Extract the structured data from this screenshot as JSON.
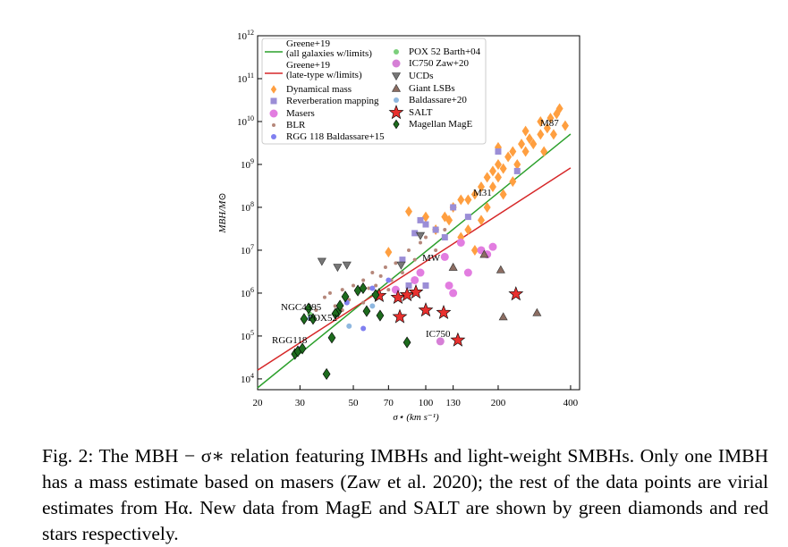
{
  "chart_data": {
    "type": "scatter",
    "log_x": true,
    "log_y": true,
    "legend": "upper left",
    "xlabel": "σ⋆ (km s⁻¹)",
    "ylabel": "MBH/M⊙",
    "xlim": [
      20,
      436
    ],
    "ylim": [
      5600,
      1000000000000
    ],
    "xticks": [
      20,
      30,
      50,
      70,
      100,
      130,
      200,
      400
    ],
    "yticks": [
      {
        "value": 10000,
        "label": "10^4"
      },
      {
        "value": 100000,
        "label": "10^5"
      },
      {
        "value": 1000000,
        "label": "10^6"
      },
      {
        "value": 10000000,
        "label": "10^7"
      },
      {
        "value": 100000000,
        "label": "10^8"
      },
      {
        "value": 1000000000,
        "label": "10^9"
      },
      {
        "value": 10000000000,
        "label": "10^10"
      },
      {
        "value": 100000000000,
        "label": "10^11"
      },
      {
        "value": 1000000000000,
        "label": "10^12"
      }
    ],
    "annotations": [
      "M87",
      "M31",
      "MW",
      "NGC4395",
      "POX52",
      "RGG118",
      "IC750"
    ],
    "series": [
      {
        "name": "Greene+19\n(all galaxies w/limits)",
        "marker": "line",
        "color": "#2ca02c",
        "x": [
          20,
          400
        ],
        "values": [
          6200,
          5100000000
        ]
      },
      {
        "name": "Greene+19\n(late-type w/limits)",
        "marker": "line",
        "color": "#d62728",
        "x": [
          20,
          400
        ],
        "values": [
          16000,
          830000000
        ]
      },
      {
        "name": "Dynamical mass",
        "marker": "diamond",
        "color": "#ff9f40",
        "x": [
          70,
          85,
          100,
          110,
          120,
          130,
          140,
          150,
          150,
          160,
          170,
          180,
          180,
          190,
          200,
          200,
          210,
          220,
          230,
          240,
          250,
          260,
          280,
          300,
          310,
          320,
          340,
          350,
          360,
          380,
          300,
          270,
          230,
          190,
          160,
          140,
          125,
          170,
          210,
          330,
          260,
          200
        ],
        "values": [
          9000000,
          80000000,
          60000000,
          30000000,
          60000000,
          100000000,
          150000000,
          30000000,
          150000000,
          200000000,
          300000000,
          500000000,
          100000000,
          700000000,
          500000000,
          1000000000,
          800000000,
          1500000000,
          2000000000,
          1000000000,
          3000000000,
          2000000000,
          3000000000,
          5000000000,
          2000000000,
          7000000000,
          5000000000,
          15000000000,
          20000000000,
          8000000000,
          10000000000,
          4000000000,
          400000000,
          300000000,
          10000000,
          20000000,
          50000000,
          50000000,
          200000000,
          12000000000,
          6000000000,
          2500000000
        ]
      },
      {
        "name": "Reverberation mapping",
        "marker": "square",
        "color": "#9b8ed6",
        "x": [
          90,
          95,
          100,
          110,
          120,
          130,
          150,
          200,
          240,
          80,
          85,
          100
        ],
        "values": [
          25000000,
          50000000,
          40000000,
          30000000,
          20000000,
          100000000,
          60000000,
          2000000000,
          700000000,
          6000000,
          1500000,
          1500000
        ]
      },
      {
        "name": "Masers",
        "marker": "circle",
        "color": "#e27de0",
        "x": [
          75,
          90,
          120,
          125,
          130,
          150,
          170,
          180,
          140,
          190,
          95
        ],
        "values": [
          1200000,
          2000000,
          7000000,
          1500000,
          1000000,
          3000000,
          10000000,
          8000000,
          15000000,
          12000000,
          3000000
        ]
      },
      {
        "name": "BLR",
        "marker": "dot",
        "color": "#b5877a",
        "x": [
          35,
          38,
          40,
          42,
          45,
          48,
          50,
          52,
          55,
          58,
          60,
          62,
          65,
          68,
          70,
          72,
          75,
          80,
          85,
          90,
          95,
          100,
          110,
          120,
          45,
          55,
          65
        ],
        "values": [
          400000,
          800000,
          1000000,
          500000,
          1200000,
          700000,
          1500000,
          1000000,
          2000000,
          1300000,
          3000000,
          1500000,
          2500000,
          4000000,
          1200000,
          2000000,
          5000000,
          3000000,
          10000000,
          6000000,
          15000000,
          20000000,
          10000000,
          30000000,
          400000,
          600000,
          800000
        ]
      },
      {
        "name": "RGG 118 Baldassare+15",
        "marker": "circle-small",
        "color": "#8080f0",
        "x": [
          30,
          55,
          47,
          60,
          70
        ],
        "values": [
          50000,
          150000,
          600000,
          1300000,
          2000000
        ]
      },
      {
        "name": "POX 52 Barth+04",
        "marker": "circle-small",
        "color": "#7ccf7c",
        "x": [
          33
        ],
        "values": [
          320000
        ]
      },
      {
        "name": "IC750 Zaw+20",
        "marker": "circle",
        "color": "#d67fd6",
        "x": [
          115
        ],
        "values": [
          75000
        ]
      },
      {
        "name": "UCDs",
        "marker": "tri-down",
        "color": "#777777",
        "x": [
          37,
          43,
          47,
          79,
          95
        ],
        "values": [
          5500000,
          4000000,
          4500000,
          4500000,
          22000000
        ]
      },
      {
        "name": "Giant LSBs",
        "marker": "tri-up",
        "color": "#8c6d62",
        "x": [
          130,
          175,
          205,
          210,
          290
        ],
        "values": [
          4000000,
          8000000,
          3500000,
          280000,
          350000
        ]
      },
      {
        "name": "Baldassare+20",
        "marker": "circle-small",
        "color": "#8fb8e0",
        "x": [
          48,
          33,
          60
        ],
        "values": [
          170000,
          260000,
          500000
        ]
      },
      {
        "name": "SALT",
        "marker": "star",
        "color": "#e8302e",
        "x": [
          64,
          76.7,
          83.6,
          91,
          78,
          100,
          118.7,
          136,
          237
        ],
        "values": [
          870000,
          790000,
          910000,
          1050000,
          280000,
          400000,
          350000,
          80000,
          950000
        ]
      },
      {
        "name": "Magellan MagE",
        "marker": "diamond",
        "color": "#1d6b1d",
        "x": [
          28.6,
          29.4,
          30.7,
          32.6,
          31.2,
          34,
          38.7,
          40.7,
          43.2,
          44,
          46.3,
          52.2,
          54.9,
          61.9,
          64.6,
          83.6,
          56.8,
          42.1
        ],
        "values": [
          38000,
          44000,
          51000,
          440000,
          250000,
          250000,
          13000,
          91000,
          370000,
          510000,
          830000,
          1150000,
          1300000,
          910000,
          300000,
          71000,
          380000,
          330000
        ]
      }
    ]
  },
  "caption": "Fig. 2: The MBH − σ∗ relation featuring IMBHs and light-weight SMBHs. Only one IMBH has a mass estimate based on masers (Zaw et al. 2020); the rest of the data points are virial estimates from Hα. New data from MagE and SALT are shown by green diamonds and red stars respectively."
}
